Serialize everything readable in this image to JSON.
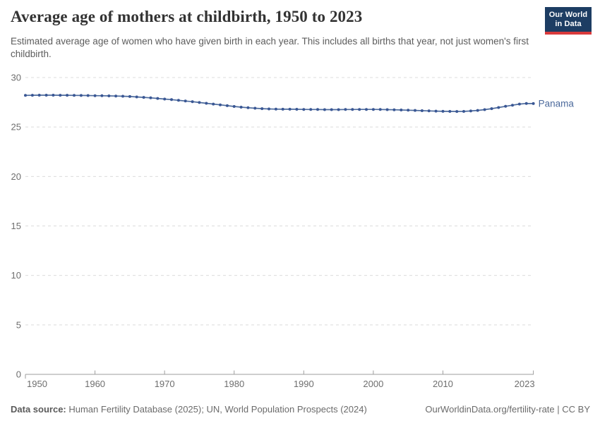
{
  "header": {
    "title": "Average age of mothers at childbirth, 1950 to 2023",
    "subtitle": "Estimated average age of women who have given birth in each year. This includes all births that year, not just women's first childbirth."
  },
  "logo": {
    "line1": "Our World",
    "line2": "in Data",
    "bg_color": "#1d3d63",
    "stripe_color": "#d93a3c"
  },
  "chart_data": {
    "type": "line",
    "title": "Average age of mothers at childbirth, 1950 to 2023",
    "xlabel": "",
    "ylabel": "",
    "ylim": [
      0,
      30
    ],
    "yticks": [
      0,
      5,
      10,
      15,
      20,
      25,
      30
    ],
    "xticks": [
      1950,
      1960,
      1970,
      1980,
      1990,
      2000,
      2010,
      2023
    ],
    "grid": "horizontal-dashed",
    "legend": "end-of-line-label",
    "grid_color": "#dcdcdc",
    "axis_color": "#9e9e9e",
    "tick_label_color": "#6e6e6e",
    "series": [
      {
        "name": "Panama",
        "color": "#4c6a9c",
        "marker_color": "#3a5794",
        "x": [
          1950,
          1951,
          1952,
          1953,
          1954,
          1955,
          1956,
          1957,
          1958,
          1959,
          1960,
          1961,
          1962,
          1963,
          1964,
          1965,
          1966,
          1967,
          1968,
          1969,
          1970,
          1971,
          1972,
          1973,
          1974,
          1975,
          1976,
          1977,
          1978,
          1979,
          1980,
          1981,
          1982,
          1983,
          1984,
          1985,
          1986,
          1987,
          1988,
          1989,
          1990,
          1991,
          1992,
          1993,
          1994,
          1995,
          1996,
          1997,
          1998,
          1999,
          2000,
          2001,
          2002,
          2003,
          2004,
          2005,
          2006,
          2007,
          2008,
          2009,
          2010,
          2011,
          2012,
          2013,
          2014,
          2015,
          2016,
          2017,
          2018,
          2019,
          2020,
          2021,
          2022,
          2023
        ],
        "values": [
          28.2,
          28.21,
          28.22,
          28.22,
          28.22,
          28.21,
          28.21,
          28.2,
          28.19,
          28.18,
          28.17,
          28.16,
          28.15,
          28.13,
          28.11,
          28.08,
          28.04,
          28.0,
          27.95,
          27.89,
          27.83,
          27.77,
          27.7,
          27.63,
          27.56,
          27.48,
          27.4,
          27.32,
          27.24,
          27.16,
          27.08,
          27.01,
          26.95,
          26.9,
          26.86,
          26.83,
          26.81,
          26.8,
          26.8,
          26.79,
          26.78,
          26.77,
          26.77,
          26.76,
          26.76,
          26.76,
          26.77,
          26.77,
          26.78,
          26.78,
          26.78,
          26.77,
          26.76,
          26.74,
          26.72,
          26.7,
          26.68,
          26.65,
          26.63,
          26.61,
          26.59,
          26.58,
          26.57,
          26.58,
          26.62,
          26.68,
          26.76,
          26.86,
          26.97,
          27.09,
          27.21,
          27.32,
          27.38,
          27.37
        ]
      }
    ]
  },
  "footer": {
    "datasource_label": "Data source:",
    "datasource_text": " Human Fertility Database (2025); UN, World Population Prospects (2024)",
    "link_text": "OurWorldinData.org/fertility-rate",
    "license_text": " | CC BY"
  }
}
